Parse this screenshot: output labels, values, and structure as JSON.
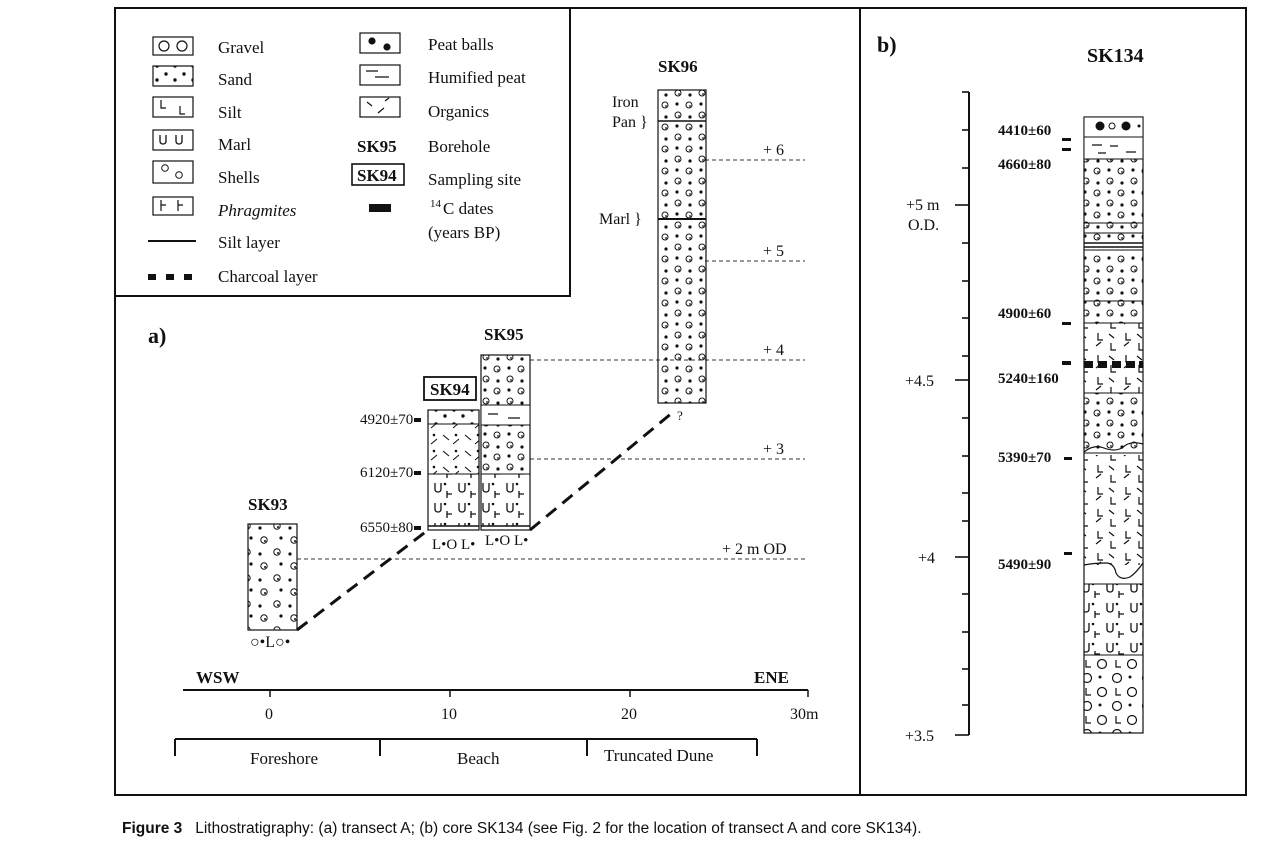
{
  "figure": {
    "panel_a_label": "a)",
    "panel_b_label": "b)",
    "legend": [
      {
        "icon": "gravel-icon",
        "label": "Gravel"
      },
      {
        "icon": "sand-icon",
        "label": "Sand"
      },
      {
        "icon": "silt-icon",
        "label": "Silt"
      },
      {
        "icon": "marl-icon",
        "label": "Marl"
      },
      {
        "icon": "shells-icon",
        "label": "Shells"
      },
      {
        "icon": "phragmites-icon",
        "label": "Phragmites"
      },
      {
        "icon": "silt-layer-icon",
        "label": "Silt layer"
      },
      {
        "icon": "charcoal-layer-icon",
        "label": "Charcoal layer"
      },
      {
        "icon": "peat-balls-icon",
        "label": "Peat balls"
      },
      {
        "icon": "humified-peat-icon",
        "label": "Humified peat"
      },
      {
        "icon": "organics-icon",
        "label": "Organics"
      },
      {
        "icon": "borehole-icon",
        "symbol": "SK95",
        "label": "Borehole"
      },
      {
        "icon": "sampling-site-icon",
        "symbol": "SK94",
        "label": "Sampling site"
      },
      {
        "icon": "c14-dates-icon",
        "label_sup": "14",
        "label": "C dates",
        "label2": "(years BP)"
      }
    ],
    "transect": {
      "cores": [
        "SK93",
        "SK94",
        "SK95",
        "SK96"
      ],
      "dates": [
        "4920±70",
        "6120±70",
        "6550±80"
      ],
      "sk96_labels": [
        "Iron",
        "Pan }",
        "Marl }",
        "?"
      ],
      "levels": [
        "+ 6",
        "+ 5",
        "+ 4",
        "+ 3",
        "+ 2 m OD"
      ],
      "direction_left": "WSW",
      "direction_right": "ENE",
      "distance_ticks": [
        "0",
        "10",
        "20",
        "30m"
      ],
      "zones": [
        "Foreshore",
        "Beach",
        "Truncated Dune"
      ]
    },
    "core_sk134": {
      "title": "SK134",
      "axis_labels": [
        "+5 m",
        "O.D.",
        "+4.5",
        "+4",
        "+3.5"
      ],
      "dates": [
        "4410±60",
        "4660±80",
        "4900±60",
        "5240±160",
        "5390±70",
        "5490±90"
      ]
    }
  },
  "caption": {
    "label": "Figure 3",
    "text": "Lithostratigraphy: (a) transect A; (b) core SK134 (see Fig. 2 for the location of transect A and core SK134)."
  }
}
